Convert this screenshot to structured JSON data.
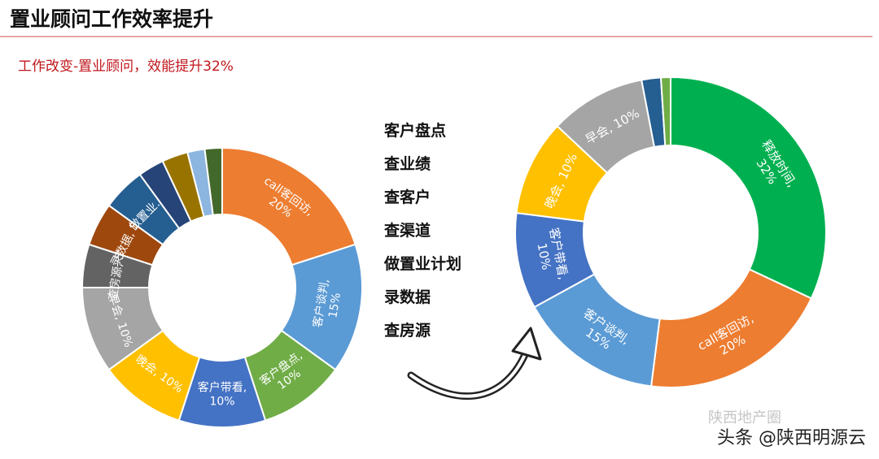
{
  "page": {
    "title": "置业顾问工作效率提升",
    "subtitle": "工作改变-置业顾问，效能提升32%",
    "task_list": [
      "客户盘点",
      "查业绩",
      "查客户",
      "查渠道",
      "做置业计划",
      "录数据",
      "查房源"
    ],
    "watermark": "头条 @陕西明源云",
    "watermark_faint": "陕西地产圈"
  },
  "chart_data": [
    {
      "type": "pie",
      "variant": "donut",
      "title": "",
      "slices": [
        {
          "label": "call客回访,\n20%",
          "value": 20,
          "color": "#ed7d31"
        },
        {
          "label": "客户谈判,\n15%",
          "value": 15,
          "color": "#5b9bd5"
        },
        {
          "label": "客户盘点,\n10%",
          "value": 10,
          "color": "#70ad47"
        },
        {
          "label": "客户带看,\n10%",
          "value": 10,
          "color": "#4472c4"
        },
        {
          "label": "晚会, 10%",
          "value": 10,
          "color": "#ffc000"
        },
        {
          "label": "早会, 10%",
          "value": 10,
          "color": "#a5a5a5"
        },
        {
          "label": "查房源, 5%",
          "value": 5,
          "color": "#636363"
        },
        {
          "label": "录数据, 5%",
          "value": 5,
          "color": "#9e480e"
        },
        {
          "label": "做置业...",
          "value": 5,
          "color": "#255e91"
        },
        {
          "label": "",
          "value": 3,
          "color": "#264478"
        },
        {
          "label": "",
          "value": 3,
          "color": "#997300"
        },
        {
          "label": "",
          "value": 2,
          "color": "#8cb5df"
        },
        {
          "label": "",
          "value": 2,
          "color": "#43682b"
        }
      ]
    },
    {
      "type": "pie",
      "variant": "donut",
      "title": "",
      "slices": [
        {
          "label": "释放时间,\n32%",
          "value": 32,
          "color": "#00b050"
        },
        {
          "label": "call客回访,\n20%",
          "value": 20,
          "color": "#ed7d31"
        },
        {
          "label": "客户谈判,\n15%",
          "value": 15,
          "color": "#5b9bd5"
        },
        {
          "label": "客户带看,\n10%",
          "value": 10,
          "color": "#4472c4"
        },
        {
          "label": "晚会, 10%",
          "value": 10,
          "color": "#ffc000"
        },
        {
          "label": "早会, 10%",
          "value": 10,
          "color": "#a5a5a5"
        },
        {
          "label": "",
          "value": 2,
          "color": "#255e91"
        },
        {
          "label": "",
          "value": 1,
          "color": "#70ad47"
        }
      ]
    }
  ]
}
